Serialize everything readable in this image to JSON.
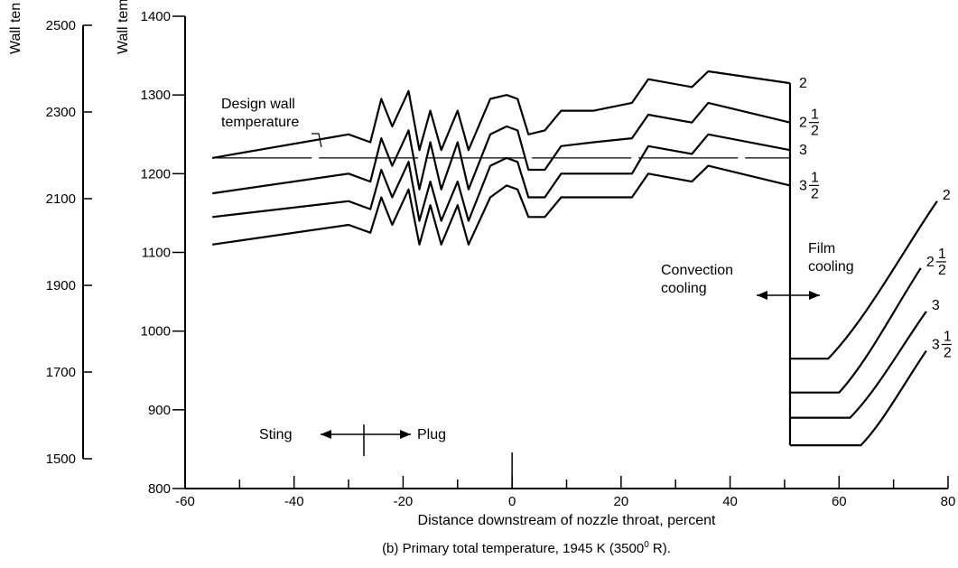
{
  "chart_data": {
    "type": "line",
    "caption": "(b) Primary total temperature, 1945 K (3500",
    "caption_superscript": "0",
    "caption_end": " R).",
    "xlabel": "Distance downstream of nozzle throat, percent",
    "ylabel_left": "Wall ten",
    "ylabel_inner": "Wall tem",
    "xlim": [
      -60,
      80
    ],
    "x_ticks": [
      -60,
      -40,
      -20,
      0,
      20,
      40,
      60,
      80
    ],
    "ylim_inner": [
      800,
      1400
    ],
    "y_ticks_inner": [
      800,
      900,
      1000,
      1100,
      1200,
      1300,
      1400
    ],
    "y_ticks_left": [
      1500,
      1700,
      1900,
      2100,
      2300,
      2500
    ],
    "annotations": {
      "design_wall_line1": "Design wall",
      "design_wall_line2": "temperature",
      "sting": "Sting",
      "plug": "Plug",
      "convection_line1": "Convection",
      "convection_line2": "cooling",
      "film_line1": "Film",
      "film_line2": "cooling"
    },
    "design_wall_temperature": 1220,
    "series": [
      {
        "name": "2",
        "label_whole": "2",
        "label_num": "",
        "label_den": "",
        "x": [
          -55,
          -30,
          -26,
          -24,
          -22,
          -19,
          -17,
          -15,
          -13,
          -10,
          -8,
          -4,
          -1,
          1,
          3,
          6,
          9,
          15,
          22,
          25,
          33,
          36,
          51
        ],
        "y": [
          1220,
          1250,
          1240,
          1295,
          1260,
          1305,
          1230,
          1280,
          1230,
          1280,
          1230,
          1295,
          1300,
          1295,
          1250,
          1255,
          1280,
          1280,
          1290,
          1320,
          1310,
          1330,
          1315
        ],
        "x2": [
          51,
          55,
          58,
          78
        ],
        "y2": [
          965,
          965,
          965,
          1165
        ]
      },
      {
        "name": "2 1/2",
        "label_whole": "2",
        "label_num": "1",
        "label_den": "2",
        "x": [
          -55,
          -30,
          -26,
          -24,
          -22,
          -19,
          -17,
          -15,
          -13,
          -10,
          -8,
          -4,
          -1,
          1,
          3,
          6,
          9,
          15,
          22,
          25,
          33,
          36,
          51
        ],
        "y": [
          1175,
          1200,
          1190,
          1245,
          1210,
          1255,
          1180,
          1240,
          1180,
          1240,
          1180,
          1250,
          1260,
          1255,
          1205,
          1205,
          1235,
          1240,
          1245,
          1275,
          1265,
          1290,
          1265
        ],
        "x2": [
          51,
          57,
          60,
          75
        ],
        "y2": [
          922,
          922,
          922,
          1080
        ]
      },
      {
        "name": "3",
        "label_whole": "3",
        "label_num": "",
        "label_den": "",
        "x": [
          -55,
          -30,
          -26,
          -24,
          -22,
          -19,
          -17,
          -15,
          -13,
          -10,
          -8,
          -4,
          -1,
          1,
          3,
          6,
          9,
          15,
          22,
          25,
          33,
          36,
          51
        ],
        "y": [
          1145,
          1165,
          1155,
          1205,
          1170,
          1215,
          1140,
          1190,
          1140,
          1190,
          1140,
          1210,
          1220,
          1215,
          1170,
          1170,
          1200,
          1200,
          1200,
          1235,
          1225,
          1250,
          1230
        ],
        "x2": [
          51,
          58,
          62,
          76
        ],
        "y2": [
          890,
          890,
          890,
          1025
        ]
      },
      {
        "name": "3 1/2",
        "label_whole": "3",
        "label_num": "1",
        "label_den": "2",
        "x": [
          -55,
          -30,
          -26,
          -24,
          -22,
          -19,
          -17,
          -15,
          -13,
          -10,
          -8,
          -4,
          -1,
          1,
          3,
          6,
          9,
          15,
          22,
          25,
          33,
          36,
          51
        ],
        "y": [
          1110,
          1135,
          1125,
          1170,
          1135,
          1180,
          1110,
          1160,
          1110,
          1160,
          1110,
          1170,
          1185,
          1180,
          1145,
          1145,
          1170,
          1170,
          1170,
          1200,
          1190,
          1210,
          1185
        ],
        "x2": [
          51,
          59,
          64,
          76
        ],
        "y2": [
          855,
          855,
          855,
          975
        ]
      }
    ]
  }
}
